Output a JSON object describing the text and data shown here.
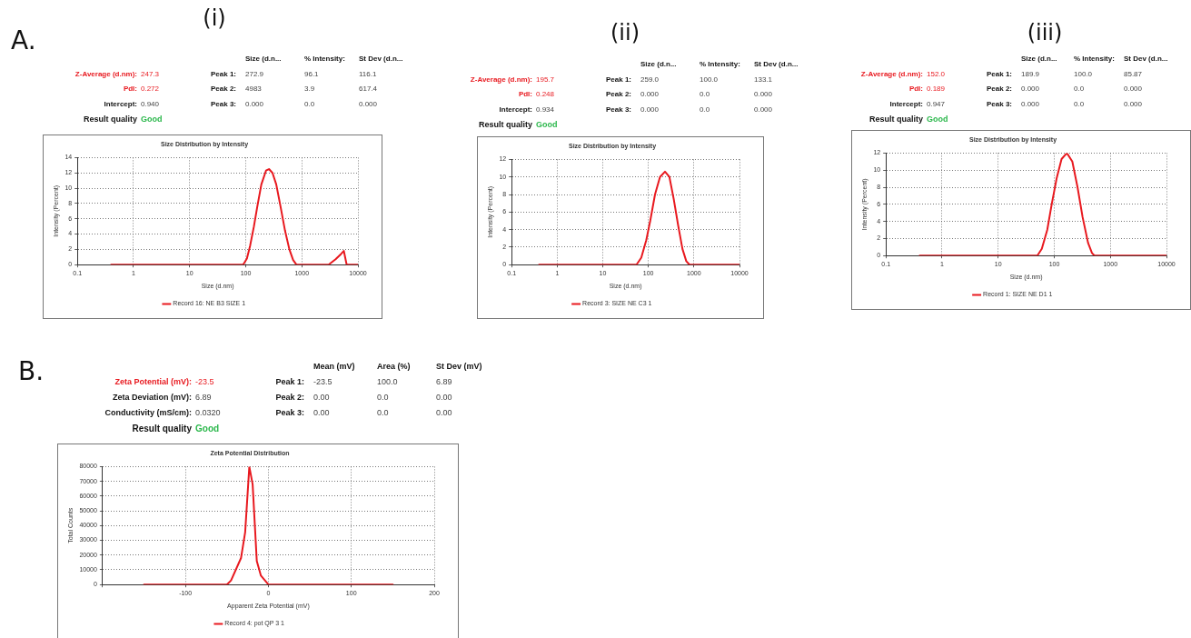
{
  "chart_data": [
    {
      "type": "line",
      "title": "Size Distribution by Intensity",
      "xlabel": "Size (d.nm)",
      "ylabel": "Intensity (Percent)",
      "log": "x",
      "grid": true,
      "legend": "bottom",
      "marker": "none",
      "line_style": "solid",
      "xlim": [
        0.1,
        10000
      ],
      "xticks": [
        0.1,
        1,
        10,
        100,
        1000,
        10000
      ],
      "ylim": [
        0,
        14
      ],
      "yticks": [
        0,
        2,
        4,
        6,
        8,
        10,
        12,
        14
      ],
      "annotations": [
        "A.",
        "(i)",
        "Size (d.n...",
        "% Intensity:",
        "St Dev (d.n...",
        "Z-Average (d.nm):",
        "247.3",
        "Peak 1:",
        "272.9",
        "96.1",
        "116.1",
        "PdI:",
        "0.272",
        "Peak 2:",
        "4983",
        "3.9",
        "617.4",
        "Intercept:",
        "0.940",
        "Peak 3:",
        "0.000",
        "0.0",
        "0.000",
        "Result quality",
        "Good"
      ],
      "series": [
        {
          "name": "Record 16: NE B3 SIZE 1",
          "color": "#e8191f",
          "x": [
            0.4,
            1,
            10,
            90,
            105,
            120,
            140,
            160,
            190,
            230,
            260,
            300,
            350,
            420,
            500,
            600,
            700,
            800,
            1000,
            3000,
            4000,
            5000,
            5600,
            6300,
            10000
          ],
          "values": [
            0,
            0,
            0,
            0,
            0.8,
            2.5,
            5,
            7.5,
            10.5,
            12.3,
            12.5,
            12,
            10.5,
            7.5,
            4.5,
            2,
            0.6,
            0,
            0,
            0,
            0.7,
            1.4,
            1.8,
            0,
            0
          ]
        }
      ]
    },
    {
      "type": "line",
      "title": "Size Distribution by Intensity",
      "xlabel": "Size (d.nm)",
      "ylabel": "Intensity (Percent)",
      "log": "x",
      "grid": true,
      "legend": "bottom",
      "marker": "none",
      "line_style": "solid",
      "xlim": [
        0.1,
        10000
      ],
      "xticks": [
        0.1,
        1,
        10,
        100,
        1000,
        10000
      ],
      "ylim": [
        0,
        12
      ],
      "yticks": [
        0,
        2,
        4,
        6,
        8,
        10,
        12
      ],
      "annotations": [
        "(ii)",
        "Size (d.n...",
        "% Intensity:",
        "St Dev (d.n...",
        "Z-Average (d.nm):",
        "195.7",
        "Peak 1:",
        "259.0",
        "100.0",
        "133.1",
        "PdI:",
        "0.248",
        "Peak 2:",
        "0.000",
        "0.0",
        "0.000",
        "Intercept:",
        "0.934",
        "Peak 3:",
        "0.000",
        "0.0",
        "0.000",
        "Result quality",
        "Good"
      ],
      "series": [
        {
          "name": "Record 3: SIZE NE C3 1",
          "color": "#e8191f",
          "x": [
            0.4,
            1,
            10,
            55,
            70,
            90,
            110,
            140,
            180,
            232,
            290,
            360,
            450,
            560,
            680,
            800,
            1000,
            10000
          ],
          "values": [
            0,
            0,
            0,
            0,
            0.8,
            2.8,
            5,
            8,
            10,
            10.6,
            10,
            7.5,
            4.5,
            1.8,
            0.4,
            0,
            0,
            0
          ]
        }
      ]
    },
    {
      "type": "line",
      "title": "Size Distribution by Intensity",
      "xlabel": "Size (d.nm)",
      "ylabel": "Intensity (Percent)",
      "log": "x",
      "grid": true,
      "legend": "bottom",
      "marker": "none",
      "line_style": "solid",
      "xlim": [
        0.1,
        10000
      ],
      "xticks": [
        0.1,
        1,
        10,
        100,
        1000,
        10000
      ],
      "ylim": [
        0,
        12
      ],
      "yticks": [
        0,
        2,
        4,
        6,
        8,
        10,
        12
      ],
      "annotations": [
        "(iii)",
        "Size (d.n...",
        "% Intensity:",
        "St Dev (d.n...",
        "Z-Average (d.nm):",
        "152.0",
        "Peak 1:",
        "189.9",
        "100.0",
        "85.87",
        "PdI:",
        "0.189",
        "Peak 2:",
        "0.000",
        "0.0",
        "0.000",
        "Intercept:",
        "0.947",
        "Peak 3:",
        "0.000",
        "0.0",
        "0.000",
        "Result quality",
        "Good"
      ],
      "series": [
        {
          "name": "Record 1: SIZE NE D1 1",
          "color": "#e8191f",
          "x": [
            0.4,
            1,
            10,
            50,
            60,
            75,
            90,
            110,
            135,
            168,
            210,
            260,
            320,
            400,
            470,
            520,
            1000,
            10000
          ],
          "values": [
            0,
            0,
            0,
            0,
            0.8,
            3,
            6,
            9,
            11.3,
            12,
            11,
            8,
            4.5,
            1.5,
            0.3,
            0,
            0,
            0
          ]
        }
      ]
    },
    {
      "type": "line",
      "title": "Zeta Potential Distribution",
      "xlabel": "Apparent Zeta Potential (mV)",
      "ylabel": "Total Counts",
      "grid": true,
      "legend": "bottom",
      "marker": "none",
      "line_style": "solid",
      "xlim": [
        -200,
        200
      ],
      "xticks": [
        {
          "value": -200,
          "label": null
        },
        -100,
        0,
        100,
        200
      ],
      "ylim": [
        0,
        80000
      ],
      "yticks": [
        0,
        10000,
        20000,
        30000,
        40000,
        50000,
        60000,
        70000,
        80000
      ],
      "annotations": [
        "B.",
        "Mean (mV)",
        "Area (%)",
        "St Dev (mV)",
        "Zeta Potential (mV):",
        "-23.5",
        "Peak 1:",
        "-23.5",
        "100.0",
        "6.89",
        "Zeta Deviation (mV):",
        "6.89",
        "Peak 2:",
        "0.00",
        "0.0",
        "0.00",
        "Conductivity (mS/cm):",
        "0.0320",
        "Peak 3:",
        "0.00",
        "0.0",
        "0.00",
        "Result quality",
        "Good"
      ],
      "series": [
        {
          "name": "Record 4: pot QP 3 1",
          "color": "#e8191f",
          "x": [
            -150,
            -50,
            -45,
            -33,
            -28,
            -23,
            -19,
            -14,
            -9,
            0,
            150
          ],
          "values": [
            0,
            0,
            2800,
            18000,
            35500,
            80000,
            68000,
            16000,
            6000,
            0,
            0
          ]
        }
      ]
    }
  ]
}
